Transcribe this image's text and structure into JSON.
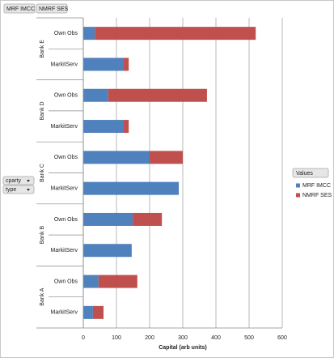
{
  "chart_data": {
    "type": "stacked-bar-horizontal",
    "field_buttons": [
      "MRF IMCC",
      "NMRF SES"
    ],
    "axis_field_buttons": [
      "cparty",
      "type"
    ],
    "legend_title": "Values",
    "x_label": "Capital (arb units)",
    "category_groups": [
      "Bank E",
      "Bank D",
      "Bank C",
      "Bank B",
      "Bank A"
    ],
    "categories": [
      "Own Obs",
      "MarkitServ",
      "Own Obs",
      "MarkitServ",
      "Own Obs",
      "MarkitServ",
      "Own Obs",
      "MarkitServ",
      "Own Obs",
      "MarkitServ"
    ],
    "series": [
      {
        "name": "MRF IMCC",
        "color": "#4f81bd",
        "values": [
          35,
          122,
          75,
          122,
          200,
          288,
          149,
          146,
          46,
          29
        ]
      },
      {
        "name": "NMRF SES",
        "color": "#c0504d",
        "values": [
          485,
          15,
          298,
          15,
          100,
          0,
          88,
          0,
          117,
          32
        ]
      }
    ],
    "xlim": [
      0,
      600
    ],
    "xticks": [
      0,
      100,
      200,
      300,
      400,
      500,
      600
    ],
    "grid": true
  }
}
